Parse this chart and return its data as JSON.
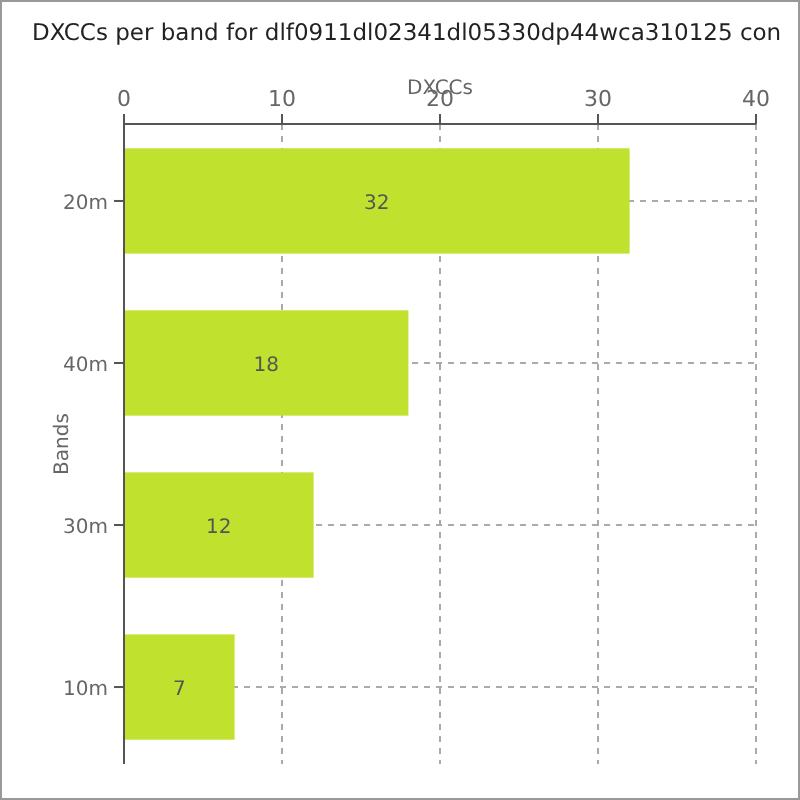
{
  "chart_data": {
    "type": "bar",
    "orientation": "horizontal",
    "title": "DXCCs per band for dlf0911dl02341dl05330dp44wca310125 con",
    "xlabel": "DXCCs",
    "ylabel": "Bands",
    "categories": [
      "20m",
      "40m",
      "30m",
      "10m"
    ],
    "values": [
      32,
      18,
      12,
      7
    ],
    "color": "#c0e22e",
    "xlim": [
      0,
      40
    ],
    "xticks": [
      0,
      10,
      20,
      30,
      40
    ],
    "grid": true,
    "data_labels": true
  }
}
